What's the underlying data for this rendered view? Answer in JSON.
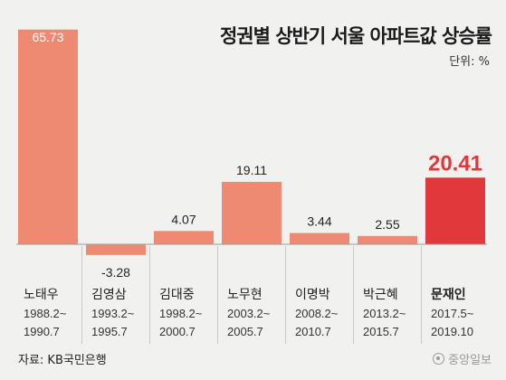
{
  "header": {
    "title": "정권별 상반기 서울 아파트값 상승률",
    "unit": "단위: %"
  },
  "footer": {
    "source": "자료: KB국민은행",
    "logo": "중앙일보"
  },
  "colors": {
    "bar": "#ee8a72",
    "highlight_bar": "#e0383b",
    "highlight_text": "#e0383b",
    "background": "#f1f1ef",
    "grid_line": "#999999"
  },
  "chart_data": {
    "type": "bar",
    "title": "정권별 상반기 서울 아파트값 상승률",
    "ylabel": "단위: %",
    "categories": [
      "노태우",
      "김영삼",
      "김대중",
      "노무현",
      "이명박",
      "박근혜",
      "문재인"
    ],
    "periods": [
      [
        "1988.2~",
        "1990.7"
      ],
      [
        "1993.2~",
        "1995.7"
      ],
      [
        "1998.2~",
        "2000.7"
      ],
      [
        "2003.2~",
        "2005.7"
      ],
      [
        "2008.2~",
        "2010.7"
      ],
      [
        "2013.2~",
        "2015.7"
      ],
      [
        "2017.5~",
        "2019.10"
      ]
    ],
    "values": [
      65.73,
      -3.28,
      4.07,
      19.11,
      3.44,
      2.55,
      20.41
    ],
    "value_labels": [
      "65.73",
      "-3.28",
      "4.07",
      "19.11",
      "3.44",
      "2.55",
      "20.41"
    ],
    "highlight_index": 6,
    "ylim": [
      -5,
      70
    ],
    "grid": false,
    "legend": "none"
  }
}
